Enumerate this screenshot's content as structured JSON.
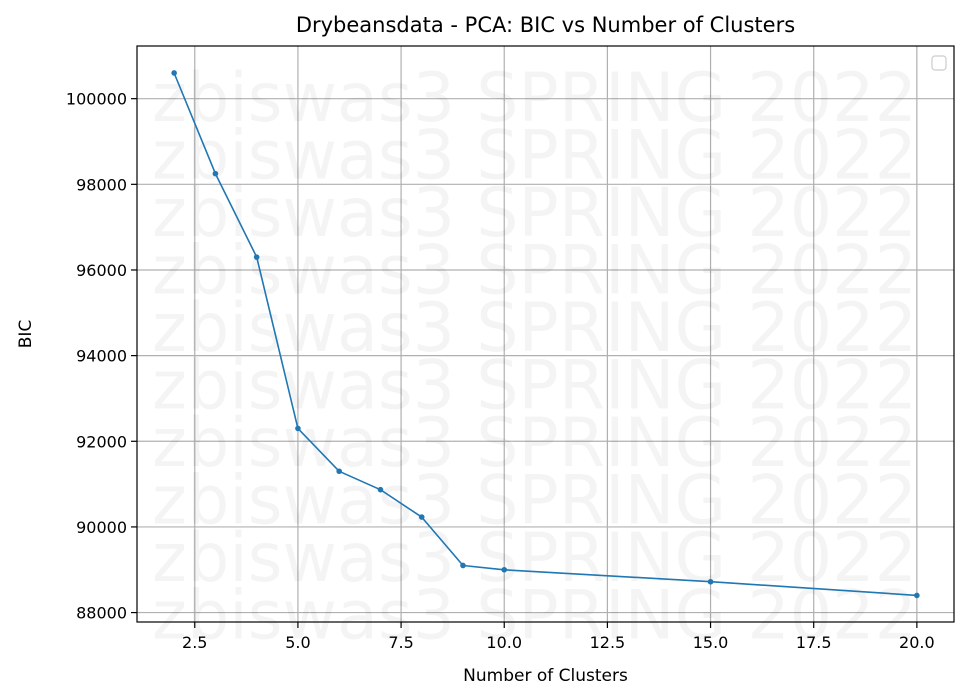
{
  "chart_data": {
    "type": "line",
    "title": "Drybeansdata - PCA: BIC vs Number of Clusters",
    "xlabel": "Number of Clusters",
    "ylabel": "BIC",
    "x": [
      2,
      3,
      4,
      5,
      6,
      7,
      8,
      9,
      10,
      15,
      20
    ],
    "series": [
      {
        "values": [
          100600,
          98250,
          96300,
          92300,
          91300,
          90870,
          90230,
          89100,
          89000,
          88720,
          88400
        ]
      }
    ],
    "xlim": [
      1.1,
      20.9
    ],
    "ylim": [
      87780,
      101230
    ],
    "xticks": [
      2.5,
      5.0,
      7.5,
      10.0,
      12.5,
      15.0,
      17.5,
      20.0
    ],
    "xtick_labels": [
      "2.5",
      "5.0",
      "7.5",
      "10.0",
      "12.5",
      "15.0",
      "17.5",
      "20.0"
    ],
    "yticks": [
      88000,
      90000,
      92000,
      94000,
      96000,
      98000,
      100000
    ],
    "ytick_labels": [
      "88000",
      "90000",
      "92000",
      "94000",
      "96000",
      "98000",
      "100000"
    ],
    "grid": true,
    "legend": "top-right (empty)",
    "line_color": "#1f77b4",
    "grid_color": "#b0b0b0",
    "watermark_text": "zbiswas3 SPRING 2022"
  }
}
